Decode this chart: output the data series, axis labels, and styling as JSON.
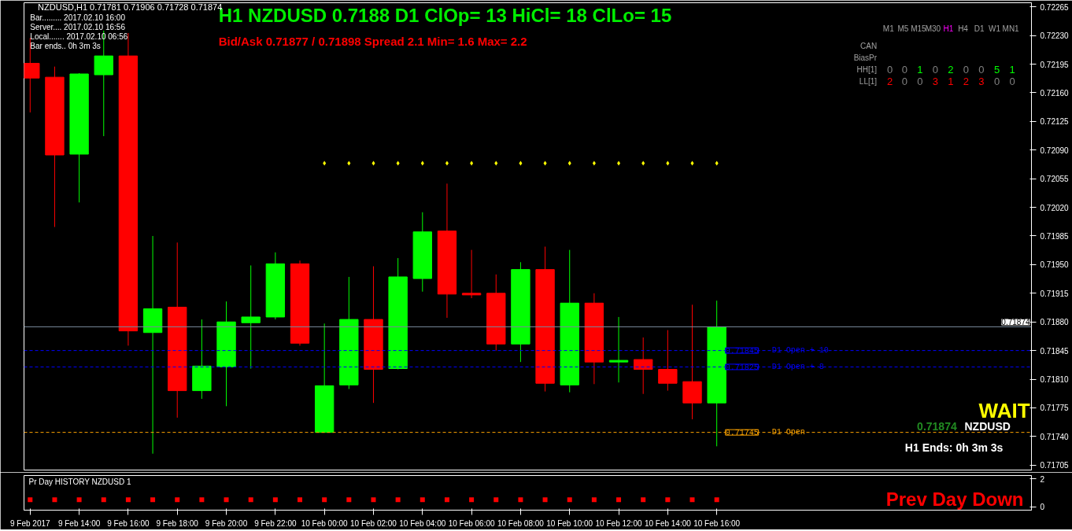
{
  "chart_data": [
    {
      "type": "candlestick",
      "title": "H1 NZDUSD 0.7188  D1 ClOp= 13 HiCl= 18 ClLo= 15",
      "subtitle": "Bid/Ask 0.71877 / 0.71898  Spread 2.1  Min= 1.6  Max= 2.2",
      "x": [
        "2017-02-09T12:00",
        "2017-02-09T13:00",
        "2017-02-09T14:00",
        "2017-02-09T15:00",
        "2017-02-09T16:00",
        "2017-02-09T17:00",
        "2017-02-09T18:00",
        "2017-02-09T19:00",
        "2017-02-09T20:00",
        "2017-02-09T21:00",
        "2017-02-09T22:00",
        "2017-02-09T23:00",
        "2017-02-10T00:00",
        "2017-02-10T01:00",
        "2017-02-10T02:00",
        "2017-02-10T03:00",
        "2017-02-10T04:00",
        "2017-02-10T05:00",
        "2017-02-10T06:00",
        "2017-02-10T07:00",
        "2017-02-10T08:00",
        "2017-02-10T09:00",
        "2017-02-10T10:00",
        "2017-02-10T11:00",
        "2017-02-10T12:00",
        "2017-02-10T13:00",
        "2017-02-10T14:00",
        "2017-02-10T15:00",
        "2017-02-10T16:00"
      ],
      "ohlc": [
        [
          0.72196,
          0.72227,
          0.72136,
          0.72178
        ],
        [
          0.72179,
          0.72192,
          0.71996,
          0.72084
        ],
        [
          0.72085,
          0.72184,
          0.72026,
          0.72183
        ],
        [
          0.72182,
          0.72236,
          0.72107,
          0.72205
        ],
        [
          0.72205,
          0.72233,
          0.71851,
          0.71869
        ],
        [
          0.71867,
          0.71985,
          0.71719,
          0.71896
        ],
        [
          0.71898,
          0.71977,
          0.71763,
          0.71796
        ],
        [
          0.71796,
          0.71883,
          0.71786,
          0.71826
        ],
        [
          0.71825,
          0.71905,
          0.71777,
          0.7188
        ],
        [
          0.71879,
          0.71949,
          0.71823,
          0.71886
        ],
        [
          0.71886,
          0.71965,
          0.71883,
          0.71951
        ],
        [
          0.71951,
          0.71955,
          0.71851,
          0.71854
        ],
        [
          0.71745,
          0.71878,
          0.71745,
          0.71802
        ],
        [
          0.71803,
          0.71935,
          0.71798,
          0.71883
        ],
        [
          0.71883,
          0.71948,
          0.71781,
          0.71822
        ],
        [
          0.71823,
          0.71958,
          0.71822,
          0.71935
        ],
        [
          0.71933,
          0.72014,
          0.71917,
          0.7199
        ],
        [
          0.71991,
          0.72049,
          0.71885,
          0.71914
        ],
        [
          0.71915,
          0.71968,
          0.71909,
          0.71913
        ],
        [
          0.71915,
          0.71938,
          0.71845,
          0.71853
        ],
        [
          0.71853,
          0.71953,
          0.71831,
          0.71944
        ],
        [
          0.71944,
          0.71972,
          0.71795,
          0.71805
        ],
        [
          0.71803,
          0.71968,
          0.71794,
          0.71903
        ],
        [
          0.71903,
          0.71915,
          0.71804,
          0.71831
        ],
        [
          0.71831,
          0.71886,
          0.71806,
          0.71833
        ],
        [
          0.71834,
          0.71861,
          0.71792,
          0.71822
        ],
        [
          0.71822,
          0.7187,
          0.71796,
          0.71805
        ],
        [
          0.71807,
          0.71901,
          0.71761,
          0.71781
        ],
        [
          0.71781,
          0.71906,
          0.71728,
          0.71874
        ]
      ],
      "colors": [
        "#ff0000",
        "#ff0000",
        "#00ff00",
        "#00ff00",
        "#ff0000",
        "#00ff00",
        "#ff0000",
        "#00ff00",
        "#00ff00",
        "#00ff00",
        "#00ff00",
        "#ff0000",
        "#00ff00",
        "#00ff00",
        "#ff0000",
        "#00ff00",
        "#00ff00",
        "#ff0000",
        "#ff0000",
        "#ff0000",
        "#00ff00",
        "#ff0000",
        "#00ff00",
        "#ff0000",
        "#00ff00",
        "#ff0000",
        "#ff0000",
        "#ff0000",
        "#00ff00"
      ],
      "series": [
        {
          "type": "scatter",
          "color": "#ffff00",
          "x": [
            "2017-02-10T00:00",
            "2017-02-10T01:00",
            "2017-02-10T02:00",
            "2017-02-10T03:00",
            "2017-02-10T04:00",
            "2017-02-10T05:00",
            "2017-02-10T06:00",
            "2017-02-10T07:00",
            "2017-02-10T08:00",
            "2017-02-10T09:00",
            "2017-02-10T10:00",
            "2017-02-10T11:00",
            "2017-02-10T12:00",
            "2017-02-10T13:00",
            "2017-02-10T14:00",
            "2017-02-10T15:00",
            "2017-02-10T16:00"
          ],
          "values": [
            0.72074,
            0.72074,
            0.72074,
            0.72074,
            0.72074,
            0.72074,
            0.72074,
            0.72074,
            0.72074,
            0.72074,
            0.72074,
            0.72074,
            0.72074,
            0.72074,
            0.72074,
            0.72074,
            0.72074
          ]
        }
      ],
      "marker": "diamond",
      "xlim": [
        "2017-02-09T11:45",
        "2017-02-11T04:50"
      ],
      "ylim": [
        0.71699,
        0.7227
      ],
      "yticks": [
        0.71705,
        {
          "value": 0.7174,
          "label": "0.71740"
        },
        0.71775,
        {
          "value": 0.7181,
          "label": "0.71810"
        },
        0.71845,
        {
          "value": 0.7188,
          "label": "0.71880"
        },
        0.71915,
        {
          "value": 0.7195,
          "label": "0.71950"
        },
        0.71985,
        {
          "value": 0.7202,
          "label": "0.72020"
        },
        0.72055,
        {
          "value": 0.7209,
          "label": "0.72090"
        },
        0.72125,
        {
          "value": 0.7216,
          "label": "0.72160"
        },
        0.72195,
        {
          "value": 0.7223,
          "label": "0.72230"
        },
        0.72265
      ],
      "tick_labels": "y",
      "grid": false,
      "ref_lines": [
        {
          "axis": "y",
          "value": 0.71874,
          "label": "0.71874",
          "color": "#778899",
          "line_style": "solid"
        },
        {
          "axis": "y",
          "value": 0.71845,
          "label": "D1 Open + 10",
          "color": "#0000ff",
          "line_style": "dashed"
        },
        {
          "axis": "y",
          "value": 0.71825,
          "label": "D1 Open + 8",
          "color": "#0000ff",
          "line_style": "dashed"
        },
        {
          "axis": "y",
          "value": 0.71745,
          "label": "D1 Open",
          "color": "#ffa500",
          "line_style": "dashed"
        }
      ],
      "annotations": [
        "NZDUSD,H1  0.71781 0.71906 0.71728 0.71874",
        "Bar......... 2017.02.10 16:00",
        "Server.... 2017.02.10 16:56",
        "Local....... 2017.02.10 06:56",
        "Bar ends.. 0h 3m 3s",
        "WAIT",
        "0.71874",
        "NZDUSD",
        "H1 Ends: 0h 3m 3s",
        "M1",
        "M5",
        "M15",
        "M30",
        "H1",
        "H4",
        "D1",
        "W1",
        "MN1",
        "CAN",
        "BiasPr",
        "HH[1]",
        "LL[1]",
        "0",
        "0",
        "1",
        "0",
        "2",
        "0",
        "0",
        "5",
        "1",
        "2",
        "0",
        "0",
        "3",
        "1",
        "2",
        "3",
        "0",
        "0",
        {
          "text": "0.71845",
          "x": "2017-02-10T16:00",
          "y": 0.71845
        },
        {
          "text": "0.71825",
          "x": "2017-02-10T16:00",
          "y": 0.71825
        },
        {
          "text": "0.71745",
          "x": "2017-02-10T16:00",
          "y": 0.71745
        }
      ]
    },
    {
      "type": "scatter",
      "title": "Pr Day HISTORY NZDUSD 1",
      "x": [
        "2017-02-09T12:00",
        "2017-02-09T13:00",
        "2017-02-09T14:00",
        "2017-02-09T15:00",
        "2017-02-09T16:00",
        "2017-02-09T17:00",
        "2017-02-09T18:00",
        "2017-02-09T19:00",
        "2017-02-09T20:00",
        "2017-02-09T21:00",
        "2017-02-09T22:00",
        "2017-02-09T23:00",
        "2017-02-10T00:00",
        "2017-02-10T01:00",
        "2017-02-10T02:00",
        "2017-02-10T03:00",
        "2017-02-10T04:00",
        "2017-02-10T05:00",
        "2017-02-10T06:00",
        "2017-02-10T07:00",
        "2017-02-10T08:00",
        "2017-02-10T09:00",
        "2017-02-10T10:00",
        "2017-02-10T11:00",
        "2017-02-10T12:00",
        "2017-02-10T13:00",
        "2017-02-10T14:00",
        "2017-02-10T15:00",
        "2017-02-10T16:00"
      ],
      "values": [
        0.5,
        0.5,
        0.5,
        0.5,
        0.5,
        0.5,
        0.5,
        0.5,
        0.5,
        0.5,
        0.5,
        0.5,
        0.5,
        0.5,
        0.5,
        0.5,
        0.5,
        0.5,
        0.5,
        0.5,
        0.5,
        0.5,
        0.5,
        0.5,
        0.5,
        0.5,
        0.5,
        0.5,
        0.5
      ],
      "color": "#ff0000",
      "marker": "square",
      "xlim": [
        "2017-02-09T11:45",
        "2017-02-11T04:50"
      ],
      "xticks": [
        {
          "value": "2017-02-09T12:00",
          "label": "9 Feb 2017"
        },
        {
          "value": "2017-02-09T14:00",
          "label": "9 Feb 14:00"
        },
        {
          "value": "2017-02-09T16:00",
          "label": "9 Feb 16:00"
        },
        {
          "value": "2017-02-09T18:00",
          "label": "9 Feb 18:00"
        },
        {
          "value": "2017-02-09T20:00",
          "label": "9 Feb 20:00"
        },
        {
          "value": "2017-02-09T22:00",
          "label": "9 Feb 22:00"
        },
        {
          "value": "2017-02-10T00:00",
          "label": "10 Feb 00:00"
        },
        {
          "value": "2017-02-10T02:00",
          "label": "10 Feb 02:00"
        },
        {
          "value": "2017-02-10T04:00",
          "label": "10 Feb 04:00"
        },
        {
          "value": "2017-02-10T06:00",
          "label": "10 Feb 06:00"
        },
        {
          "value": "2017-02-10T08:00",
          "label": "10 Feb 08:00"
        },
        {
          "value": "2017-02-10T10:00",
          "label": "10 Feb 10:00"
        },
        {
          "value": "2017-02-10T12:00",
          "label": "10 Feb 12:00"
        },
        {
          "value": "2017-02-10T14:00",
          "label": "10 Feb 14:00"
        },
        {
          "value": "2017-02-10T16:00",
          "label": "10 Feb 16:00"
        }
      ],
      "ylim": [
        -0.25,
        2.25
      ],
      "yticks": [
        0,
        2
      ],
      "grid": false,
      "annotations": [
        "Prev Day Down"
      ]
    }
  ]
}
